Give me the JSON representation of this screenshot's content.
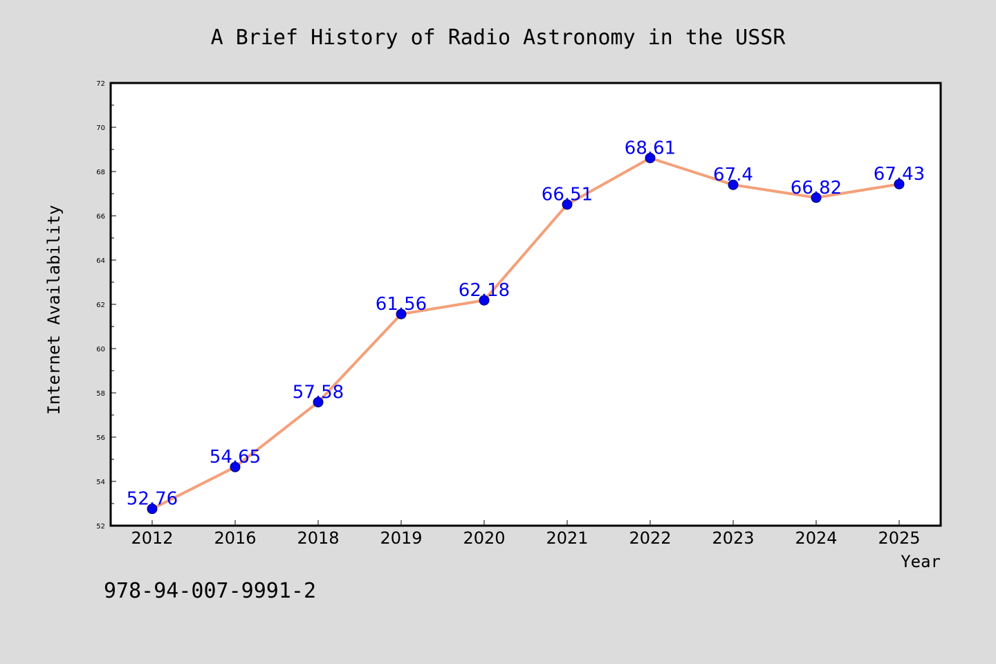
{
  "chart_data": {
    "type": "line",
    "title": "A Brief History of Radio Astronomy in the USSR",
    "xlabel": "Year",
    "ylabel": "Internet Availability",
    "categories": [
      "2012",
      "2016",
      "2018",
      "2019",
      "2020",
      "2021",
      "2022",
      "2023",
      "2024",
      "2025"
    ],
    "series": [
      {
        "values": [
          52.76,
          54.65,
          57.58,
          61.56,
          62.18,
          66.51,
          68.61,
          67.4,
          66.82,
          67.43
        ],
        "data_labels": [
          "52.76",
          "54.65",
          "57.58",
          "61.56",
          "62.18",
          "66.51",
          "68.61",
          "67.4",
          "66.82",
          "67.43"
        ]
      }
    ],
    "ylim": [
      52,
      72
    ],
    "yticks": [
      "52",
      "54",
      "56",
      "58",
      "60",
      "62",
      "64",
      "66",
      "68",
      "70",
      "72"
    ],
    "grid": false,
    "legend": "none",
    "line_color": "#f4a07a",
    "marker_color": "#0000ee",
    "label_color": "#0000ee"
  },
  "footer": {
    "code": "978-94-007-9991-2"
  },
  "colors": {
    "background": "#dcdcdc",
    "plot_background": "#ffffff",
    "axis": "#000000"
  }
}
